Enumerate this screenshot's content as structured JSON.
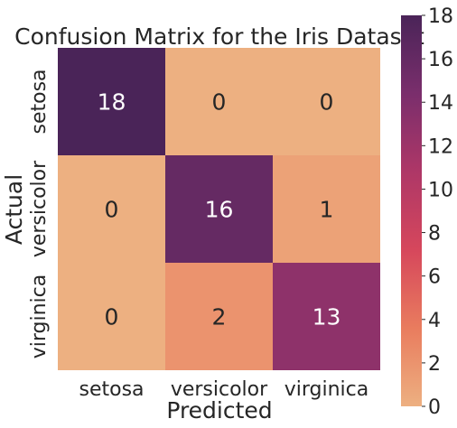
{
  "chart_data": {
    "type": "heatmap",
    "title": "Confusion Matrix for the Iris Dataset",
    "xlabel": "Predicted",
    "ylabel": "Actual",
    "x_categories": [
      "setosa",
      "versicolor",
      "virginica"
    ],
    "y_categories": [
      "setosa",
      "versicolor",
      "virginica"
    ],
    "values": [
      [
        18,
        0,
        0
      ],
      [
        0,
        16,
        1
      ],
      [
        0,
        2,
        13
      ]
    ],
    "colorbar": {
      "min": 0,
      "max": 18,
      "ticks": [
        "0",
        "2",
        "4",
        "6",
        "8",
        "10",
        "12",
        "14",
        "16",
        "18"
      ]
    },
    "colormap_stops": [
      "#edb081",
      "#e97c5e",
      "#d6475c",
      "#ae3767",
      "#7a2e6c",
      "#4a2458"
    ]
  }
}
